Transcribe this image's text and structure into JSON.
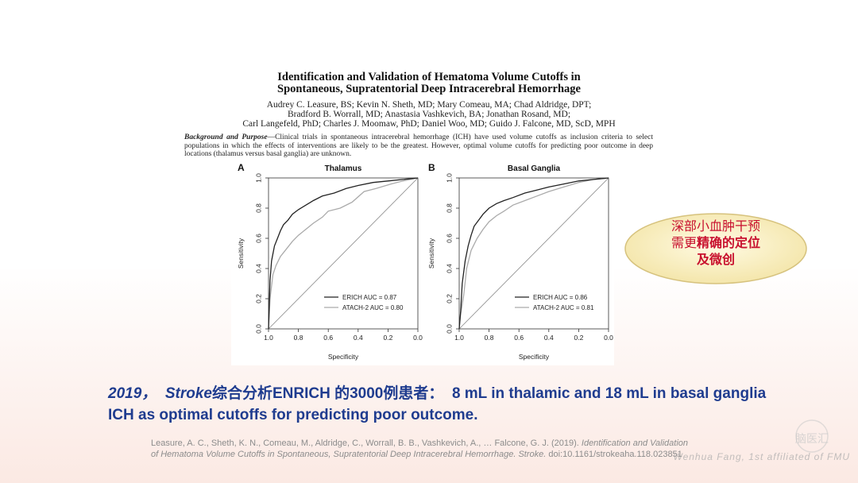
{
  "paper": {
    "title_line1": "Identification and Validation of Hematoma Volume Cutoffs in",
    "title_line2": "Spontaneous, Supratentorial Deep Intracerebral Hemorrhage",
    "authors_line1": "Audrey C. Leasure, BS; Kevin N. Sheth, MD; Mary Comeau, MA; Chad Aldridge, DPT;",
    "authors_line2": "Bradford B. Worrall, MD; Anastasia Vashkevich, BA; Jonathan Rosand, MD;",
    "authors_line3": "Carl Langefeld, PhD; Charles J. Moomaw, PhD; Daniel Woo, MD; Guido J. Falcone, MD, ScD, MPH",
    "abstract_heading": "Background and Purpose",
    "abstract_text": "—Clinical trials in spontaneous intracerebral hemorrhage (ICH) have used volume cutoffs as inclusion criteria to select populations in which the effects of interventions are likely to be the greatest. However, optimal volume cutoffs for predicting poor outcome in deep locations (thalamus versus basal ganglia) are unknown."
  },
  "chart_data": [
    {
      "type": "line",
      "panel": "A",
      "title": "Thalamus",
      "xlabel": "Specificity",
      "ylabel": "Sensitivity",
      "xlim": [
        1.0,
        0.0
      ],
      "ylim": [
        0.0,
        1.0
      ],
      "xticks": [
        "1.0",
        "0.8",
        "0.6",
        "0.4",
        "0.2",
        "0.0"
      ],
      "yticks": [
        "0.0",
        "0.2",
        "0.4",
        "0.6",
        "0.8",
        "1.0"
      ],
      "legend_position": "bottom-right",
      "series": [
        {
          "name": "ERICH AUC = 0.87",
          "color": "#222222",
          "x": [
            1.0,
            0.99,
            0.98,
            0.96,
            0.94,
            0.92,
            0.9,
            0.87,
            0.84,
            0.8,
            0.75,
            0.7,
            0.64,
            0.56,
            0.48,
            0.4,
            0.3,
            0.2,
            0.1,
            0.0
          ],
          "y": [
            0.0,
            0.32,
            0.45,
            0.55,
            0.6,
            0.65,
            0.69,
            0.72,
            0.76,
            0.79,
            0.82,
            0.85,
            0.88,
            0.9,
            0.93,
            0.95,
            0.97,
            0.98,
            0.99,
            1.0
          ]
        },
        {
          "name": "ATACH-2 AUC = 0.80",
          "color": "#aaaaaa",
          "x": [
            1.0,
            0.99,
            0.97,
            0.95,
            0.92,
            0.88,
            0.84,
            0.8,
            0.75,
            0.7,
            0.64,
            0.6,
            0.52,
            0.44,
            0.36,
            0.28,
            0.18,
            0.1,
            0.0
          ],
          "y": [
            0.0,
            0.2,
            0.36,
            0.42,
            0.48,
            0.53,
            0.58,
            0.62,
            0.66,
            0.7,
            0.74,
            0.78,
            0.8,
            0.84,
            0.91,
            0.93,
            0.96,
            0.98,
            1.0
          ]
        },
        {
          "name": "",
          "color": "#888888",
          "x": [
            1.0,
            0.0
          ],
          "y": [
            0.0,
            1.0
          ]
        }
      ]
    },
    {
      "type": "line",
      "panel": "B",
      "title": "Basal Ganglia",
      "xlabel": "Specificity",
      "ylabel": "Sensitivity",
      "xlim": [
        1.0,
        0.0
      ],
      "ylim": [
        0.0,
        1.0
      ],
      "xticks": [
        "1.0",
        "0.8",
        "0.6",
        "0.4",
        "0.2",
        "0.0"
      ],
      "yticks": [
        "0.0",
        "0.2",
        "0.4",
        "0.6",
        "0.8",
        "1.0"
      ],
      "legend_position": "bottom-right",
      "series": [
        {
          "name": "ERICH AUC = 0.86",
          "color": "#222222",
          "x": [
            1.0,
            0.99,
            0.98,
            0.96,
            0.94,
            0.92,
            0.9,
            0.87,
            0.84,
            0.8,
            0.75,
            0.7,
            0.64,
            0.56,
            0.48,
            0.4,
            0.3,
            0.2,
            0.1,
            0.0
          ],
          "y": [
            0.0,
            0.12,
            0.3,
            0.45,
            0.55,
            0.62,
            0.68,
            0.72,
            0.76,
            0.8,
            0.83,
            0.85,
            0.87,
            0.9,
            0.92,
            0.94,
            0.96,
            0.98,
            0.99,
            1.0
          ]
        },
        {
          "name": "ATACH-2 AUC = 0.81",
          "color": "#aaaaaa",
          "x": [
            1.0,
            0.99,
            0.97,
            0.95,
            0.92,
            0.88,
            0.84,
            0.8,
            0.75,
            0.7,
            0.64,
            0.56,
            0.48,
            0.4,
            0.3,
            0.2,
            0.1,
            0.0
          ],
          "y": [
            0.0,
            0.1,
            0.22,
            0.4,
            0.52,
            0.6,
            0.66,
            0.71,
            0.75,
            0.78,
            0.82,
            0.85,
            0.88,
            0.91,
            0.94,
            0.97,
            0.99,
            1.0
          ]
        },
        {
          "name": "",
          "color": "#888888",
          "x": [
            1.0,
            0.0
          ],
          "y": [
            0.0,
            1.0
          ]
        }
      ]
    }
  ],
  "callout": {
    "line1": "深部小血肿干预",
    "line2_normal": "需更",
    "line2_bold": "精确的定位",
    "line3": "及微创"
  },
  "main_text": {
    "year": "2019，",
    "journal": "Stroke",
    "chinese": "综合分析ENRICH 的3000例患者：",
    "english": "8 mL in thalamic and 18 mL in basal ganglia ICH as optimal cutoffs for predicting poor outcome."
  },
  "reference": {
    "authors": "Leasure, A. C., Sheth, K. N., Comeau, M., Aldridge, C., Worrall, B. B., Vashkevich, A., … Falcone, G. J. (2019).",
    "title": "Identification and Validation of Hematoma Volume Cutoffs in Spontaneous, Supratentorial Deep Intracerebral Hemorrhage.",
    "journal": "Stroke.",
    "doi": "doi:10.1161/strokeaha.118.023851"
  },
  "watermark": {
    "logo_text": "脑医汇",
    "author": "Wenhua Fang, 1st affiliated of FMU"
  }
}
